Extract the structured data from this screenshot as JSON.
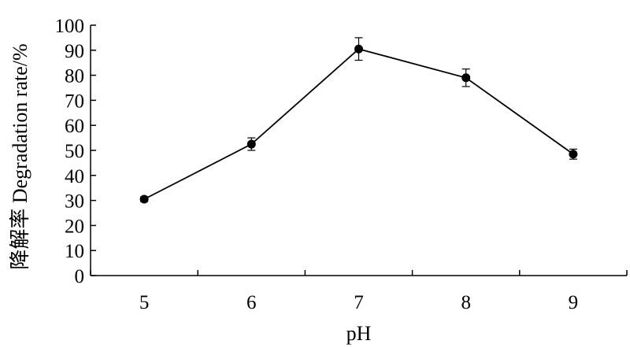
{
  "chart_data": {
    "type": "line",
    "xlabel": "pH",
    "ylabel": "降解率  Degradation rate/%",
    "x": [
      5,
      6,
      7,
      8,
      9
    ],
    "categories": [
      "5",
      "6",
      "7",
      "8",
      "9"
    ],
    "series": [
      {
        "values": [
          30.5,
          52.5,
          90.5,
          79.0,
          48.5
        ],
        "errors": [
          1.0,
          2.5,
          4.5,
          3.5,
          2.0
        ]
      }
    ],
    "ylim": [
      0,
      100
    ],
    "yticks": [
      0,
      10,
      20,
      30,
      40,
      50,
      60,
      70,
      80,
      90,
      100
    ],
    "ytick_labels": [
      "0",
      "10",
      "20",
      "30",
      "40",
      "50",
      "60",
      "70",
      "80",
      "90",
      "100"
    ],
    "grid": false,
    "colors": {
      "line": "#000000",
      "marker": "#000000"
    }
  }
}
